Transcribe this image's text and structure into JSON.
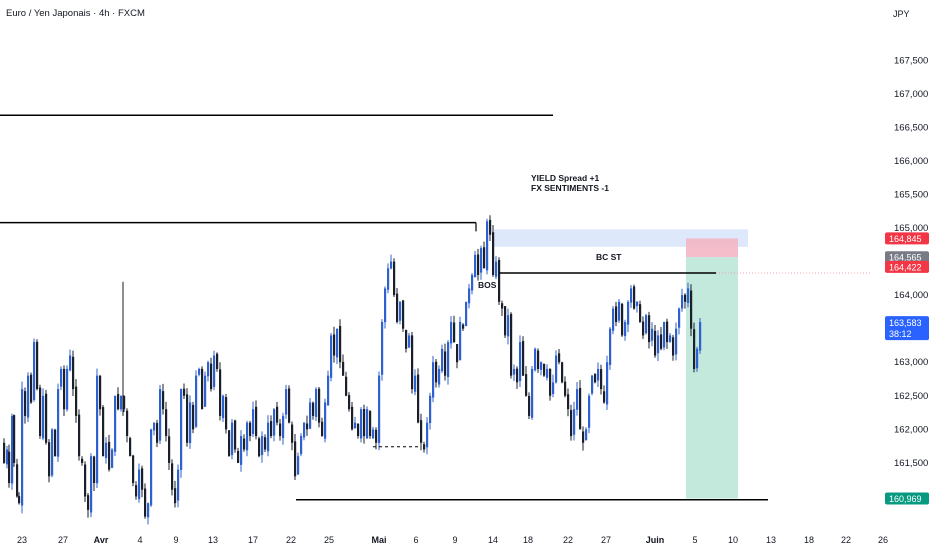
{
  "header": {
    "title": "Euro / Yen Japonais · 4h · FXCM",
    "currency": "JPY"
  },
  "chart_data": {
    "type": "candlestick",
    "title": "Euro / Yen Japonais · 4h · FXCM",
    "ylim": [
      160.5,
      168.1
    ],
    "y_ticks": [
      "167,500",
      "167,000",
      "166,500",
      "166,000",
      "165,500",
      "165,000",
      "164,000",
      "163,500",
      "163,000",
      "162,500",
      "162,000",
      "161,500"
    ],
    "x_ticks": [
      {
        "label": "23",
        "bold": false
      },
      {
        "label": "27",
        "bold": false
      },
      {
        "label": "Avr",
        "bold": true
      },
      {
        "label": "4",
        "bold": false
      },
      {
        "label": "9",
        "bold": false
      },
      {
        "label": "13",
        "bold": false
      },
      {
        "label": "17",
        "bold": false
      },
      {
        "label": "22",
        "bold": false
      },
      {
        "label": "25",
        "bold": false
      },
      {
        "label": "Mai",
        "bold": true
      },
      {
        "label": "6",
        "bold": false
      },
      {
        "label": "9",
        "bold": false
      },
      {
        "label": "14",
        "bold": false
      },
      {
        "label": "18",
        "bold": false
      },
      {
        "label": "22",
        "bold": false
      },
      {
        "label": "27",
        "bold": false
      },
      {
        "label": "Juin",
        "bold": true
      },
      {
        "label": "5",
        "bold": false
      },
      {
        "label": "10",
        "bold": false
      },
      {
        "label": "13",
        "bold": false
      },
      {
        "label": "18",
        "bold": false
      },
      {
        "label": "22",
        "bold": false
      },
      {
        "label": "26",
        "bold": false
      }
    ],
    "price_path": [
      [
        0,
        161.8
      ],
      [
        3,
        161.5
      ],
      [
        6,
        161.7
      ],
      [
        8,
        161.2
      ],
      [
        11,
        162.2
      ],
      [
        13,
        161.5
      ],
      [
        16,
        161.0
      ],
      [
        18,
        160.9
      ],
      [
        21,
        162.6
      ],
      [
        24,
        162.2
      ],
      [
        27,
        162.8
      ],
      [
        30,
        162.4
      ],
      [
        33,
        163.3
      ],
      [
        36,
        162.6
      ],
      [
        39,
        161.9
      ],
      [
        42,
        162.5
      ],
      [
        45,
        161.8
      ],
      [
        48,
        161.3
      ],
      [
        51,
        162.0
      ],
      [
        54,
        161.6
      ],
      [
        57,
        162.6
      ],
      [
        60,
        162.9
      ],
      [
        63,
        162.3
      ],
      [
        66,
        162.9
      ],
      [
        69,
        163.1
      ],
      [
        72,
        162.6
      ],
      [
        75,
        162.2
      ],
      [
        78,
        161.6
      ],
      [
        81,
        161.5
      ],
      [
        84,
        161.0
      ],
      [
        87,
        160.8
      ],
      [
        90,
        161.6
      ],
      [
        93,
        161.2
      ],
      [
        96,
        162.8
      ],
      [
        99,
        162.3
      ],
      [
        102,
        161.6
      ],
      [
        105,
        161.8
      ],
      [
        108,
        161.4
      ],
      [
        111,
        161.7
      ],
      [
        114,
        162.5
      ],
      [
        117,
        162.3
      ],
      [
        120,
        162.5
      ],
      [
        123,
        162.3
      ],
      [
        126,
        161.9
      ],
      [
        129,
        161.6
      ],
      [
        132,
        161.2
      ],
      [
        135,
        161.0
      ],
      [
        138,
        161.4
      ],
      [
        141,
        161.1
      ],
      [
        144,
        160.7
      ],
      [
        147,
        160.9
      ],
      [
        150,
        162.0
      ],
      [
        153,
        162.1
      ],
      [
        156,
        161.8
      ],
      [
        159,
        162.6
      ],
      [
        162,
        162.3
      ],
      [
        165,
        161.9
      ],
      [
        168,
        161.5
      ],
      [
        171,
        161.1
      ],
      [
        174,
        160.9
      ],
      [
        177,
        161.4
      ],
      [
        180,
        162.6
      ],
      [
        183,
        162.5
      ],
      [
        186,
        161.8
      ],
      [
        189,
        162.4
      ],
      [
        192,
        162.0
      ],
      [
        195,
        162.8
      ],
      [
        198,
        162.9
      ],
      [
        201,
        162.3
      ],
      [
        204,
        162.8
      ],
      [
        207,
        163.0
      ],
      [
        210,
        162.6
      ],
      [
        213,
        163.1
      ],
      [
        216,
        162.9
      ],
      [
        219,
        162.2
      ],
      [
        222,
        162.5
      ],
      [
        225,
        162.0
      ],
      [
        228,
        161.6
      ],
      [
        231,
        162.1
      ],
      [
        234,
        161.7
      ],
      [
        237,
        161.5
      ],
      [
        240,
        161.9
      ],
      [
        243,
        161.7
      ],
      [
        246,
        162.1
      ],
      [
        249,
        161.9
      ],
      [
        252,
        162.3
      ],
      [
        255,
        161.9
      ],
      [
        258,
        161.6
      ],
      [
        261,
        161.9
      ],
      [
        264,
        161.7
      ],
      [
        267,
        162.1
      ],
      [
        270,
        161.9
      ],
      [
        273,
        162.3
      ],
      [
        276,
        162.1
      ],
      [
        279,
        161.9
      ],
      [
        282,
        162.2
      ],
      [
        285,
        162.6
      ],
      [
        288,
        162.1
      ],
      [
        291,
        161.8
      ],
      [
        294,
        161.3
      ],
      [
        297,
        161.6
      ],
      [
        300,
        161.9
      ],
      [
        303,
        162.1
      ],
      [
        306,
        162.0
      ],
      [
        309,
        162.4
      ],
      [
        312,
        162.2
      ],
      [
        315,
        162.6
      ],
      [
        318,
        162.1
      ],
      [
        321,
        161.9
      ],
      [
        324,
        162.4
      ],
      [
        327,
        162.8
      ],
      [
        330,
        163.4
      ],
      [
        333,
        163.1
      ],
      [
        336,
        163.5
      ],
      [
        339,
        163.0
      ],
      [
        342,
        162.8
      ],
      [
        345,
        162.5
      ],
      [
        348,
        162.3
      ],
      [
        351,
        162.0
      ],
      [
        354,
        162.1
      ],
      [
        357,
        161.9
      ],
      [
        360,
        162.3
      ],
      [
        363,
        161.9
      ],
      [
        366,
        162.3
      ],
      [
        369,
        161.9
      ],
      [
        372,
        162.0
      ],
      [
        375,
        161.8
      ],
      [
        378,
        162.8
      ],
      [
        381,
        163.6
      ],
      [
        384,
        164.1
      ],
      [
        387,
        164.4
      ],
      [
        390,
        164.5
      ],
      [
        393,
        164.0
      ],
      [
        396,
        163.6
      ],
      [
        399,
        163.9
      ],
      [
        402,
        163.5
      ],
      [
        405,
        163.2
      ],
      [
        408,
        163.4
      ],
      [
        411,
        162.6
      ],
      [
        414,
        162.8
      ],
      [
        417,
        162.1
      ],
      [
        420,
        161.8
      ],
      [
        423,
        161.7
      ],
      [
        426,
        162.1
      ],
      [
        429,
        162.5
      ],
      [
        432,
        163.0
      ],
      [
        435,
        162.7
      ],
      [
        438,
        162.9
      ],
      [
        441,
        163.2
      ],
      [
        444,
        162.8
      ],
      [
        447,
        163.3
      ],
      [
        450,
        163.6
      ],
      [
        453,
        163.3
      ],
      [
        456,
        163.0
      ],
      [
        459,
        163.6
      ],
      [
        462,
        163.5
      ],
      [
        465,
        163.9
      ],
      [
        468,
        164.1
      ],
      [
        471,
        164.3
      ],
      [
        474,
        164.6
      ],
      [
        477,
        164.3
      ],
      [
        480,
        164.7
      ],
      [
        483,
        164.4
      ],
      [
        486,
        165.1
      ],
      [
        489,
        164.9
      ],
      [
        492,
        164.3
      ],
      [
        495,
        164.5
      ],
      [
        498,
        163.9
      ],
      [
        501,
        163.8
      ],
      [
        504,
        163.4
      ],
      [
        507,
        163.7
      ],
      [
        510,
        162.8
      ],
      [
        513,
        162.9
      ],
      [
        516,
        162.7
      ],
      [
        519,
        163.3
      ],
      [
        522,
        162.8
      ],
      [
        525,
        162.5
      ],
      [
        528,
        162.2
      ],
      [
        531,
        162.9
      ],
      [
        534,
        163.2
      ],
      [
        537,
        162.9
      ],
      [
        540,
        163.0
      ],
      [
        543,
        162.8
      ],
      [
        546,
        162.9
      ],
      [
        549,
        162.5
      ],
      [
        552,
        162.7
      ],
      [
        555,
        163.1
      ],
      [
        558,
        163.0
      ],
      [
        561,
        162.7
      ],
      [
        564,
        162.5
      ],
      [
        567,
        162.3
      ],
      [
        570,
        161.9
      ],
      [
        573,
        162.3
      ],
      [
        576,
        162.6
      ],
      [
        579,
        162.0
      ],
      [
        582,
        161.8
      ],
      [
        585,
        162.0
      ],
      [
        588,
        162.5
      ],
      [
        591,
        162.8
      ],
      [
        594,
        162.7
      ],
      [
        597,
        162.9
      ],
      [
        600,
        162.6
      ],
      [
        603,
        162.4
      ],
      [
        606,
        163.0
      ],
      [
        609,
        163.5
      ],
      [
        612,
        163.8
      ],
      [
        615,
        163.6
      ],
      [
        618,
        163.9
      ],
      [
        621,
        163.4
      ],
      [
        624,
        163.6
      ],
      [
        627,
        163.9
      ],
      [
        630,
        164.1
      ],
      [
        633,
        163.8
      ],
      [
        636,
        163.9
      ],
      [
        639,
        163.6
      ],
      [
        642,
        163.4
      ],
      [
        645,
        163.7
      ],
      [
        648,
        163.3
      ],
      [
        651,
        163.5
      ],
      [
        654,
        163.1
      ],
      [
        657,
        163.4
      ],
      [
        660,
        163.2
      ],
      [
        663,
        163.6
      ],
      [
        666,
        163.3
      ],
      [
        669,
        163.4
      ],
      [
        672,
        163.1
      ],
      [
        675,
        163.5
      ],
      [
        678,
        163.8
      ],
      [
        681,
        164.0
      ],
      [
        684,
        163.9
      ],
      [
        687,
        164.1
      ],
      [
        690,
        163.5
      ],
      [
        693,
        162.9
      ],
      [
        696,
        163.2
      ],
      [
        699,
        163.6
      ]
    ],
    "levels": [
      {
        "name": "upper-resistance",
        "value": 166.68,
        "x_start": 0,
        "x_end": 553
      },
      {
        "name": "left-swing-high",
        "value": 165.08,
        "x_start": 0,
        "x_end": 476
      },
      {
        "name": "bc-st",
        "value": 164.33,
        "x_start": 499,
        "x_end": 716
      },
      {
        "name": "bottom-support",
        "value": 160.95,
        "x_start": 296,
        "x_end": 768
      },
      {
        "name": "mid-dashed",
        "value": 161.74,
        "x_start": 373,
        "x_end": 420
      }
    ],
    "annotations": {
      "yield": "YIELD Spread +1",
      "fx": "FX SENTIMENTS -1",
      "bos": "BOS",
      "bcst": "BC ST"
    },
    "position": {
      "entry": "164,565",
      "stop": "164,845",
      "target": "160,969",
      "current_price": "163,583",
      "countdown": "38:12",
      "last_level": "164,422"
    },
    "colors": {
      "bull": "#2f60d0",
      "bear": "#1b1f2a",
      "stop_zone": "#f3b6c3",
      "target_zone": "#b9e4d6",
      "zone_blue": "#dde9fb",
      "badge_red": "#f23645",
      "badge_gray": "#787b86",
      "badge_blue": "#2962ff",
      "badge_green": "#089981"
    }
  }
}
